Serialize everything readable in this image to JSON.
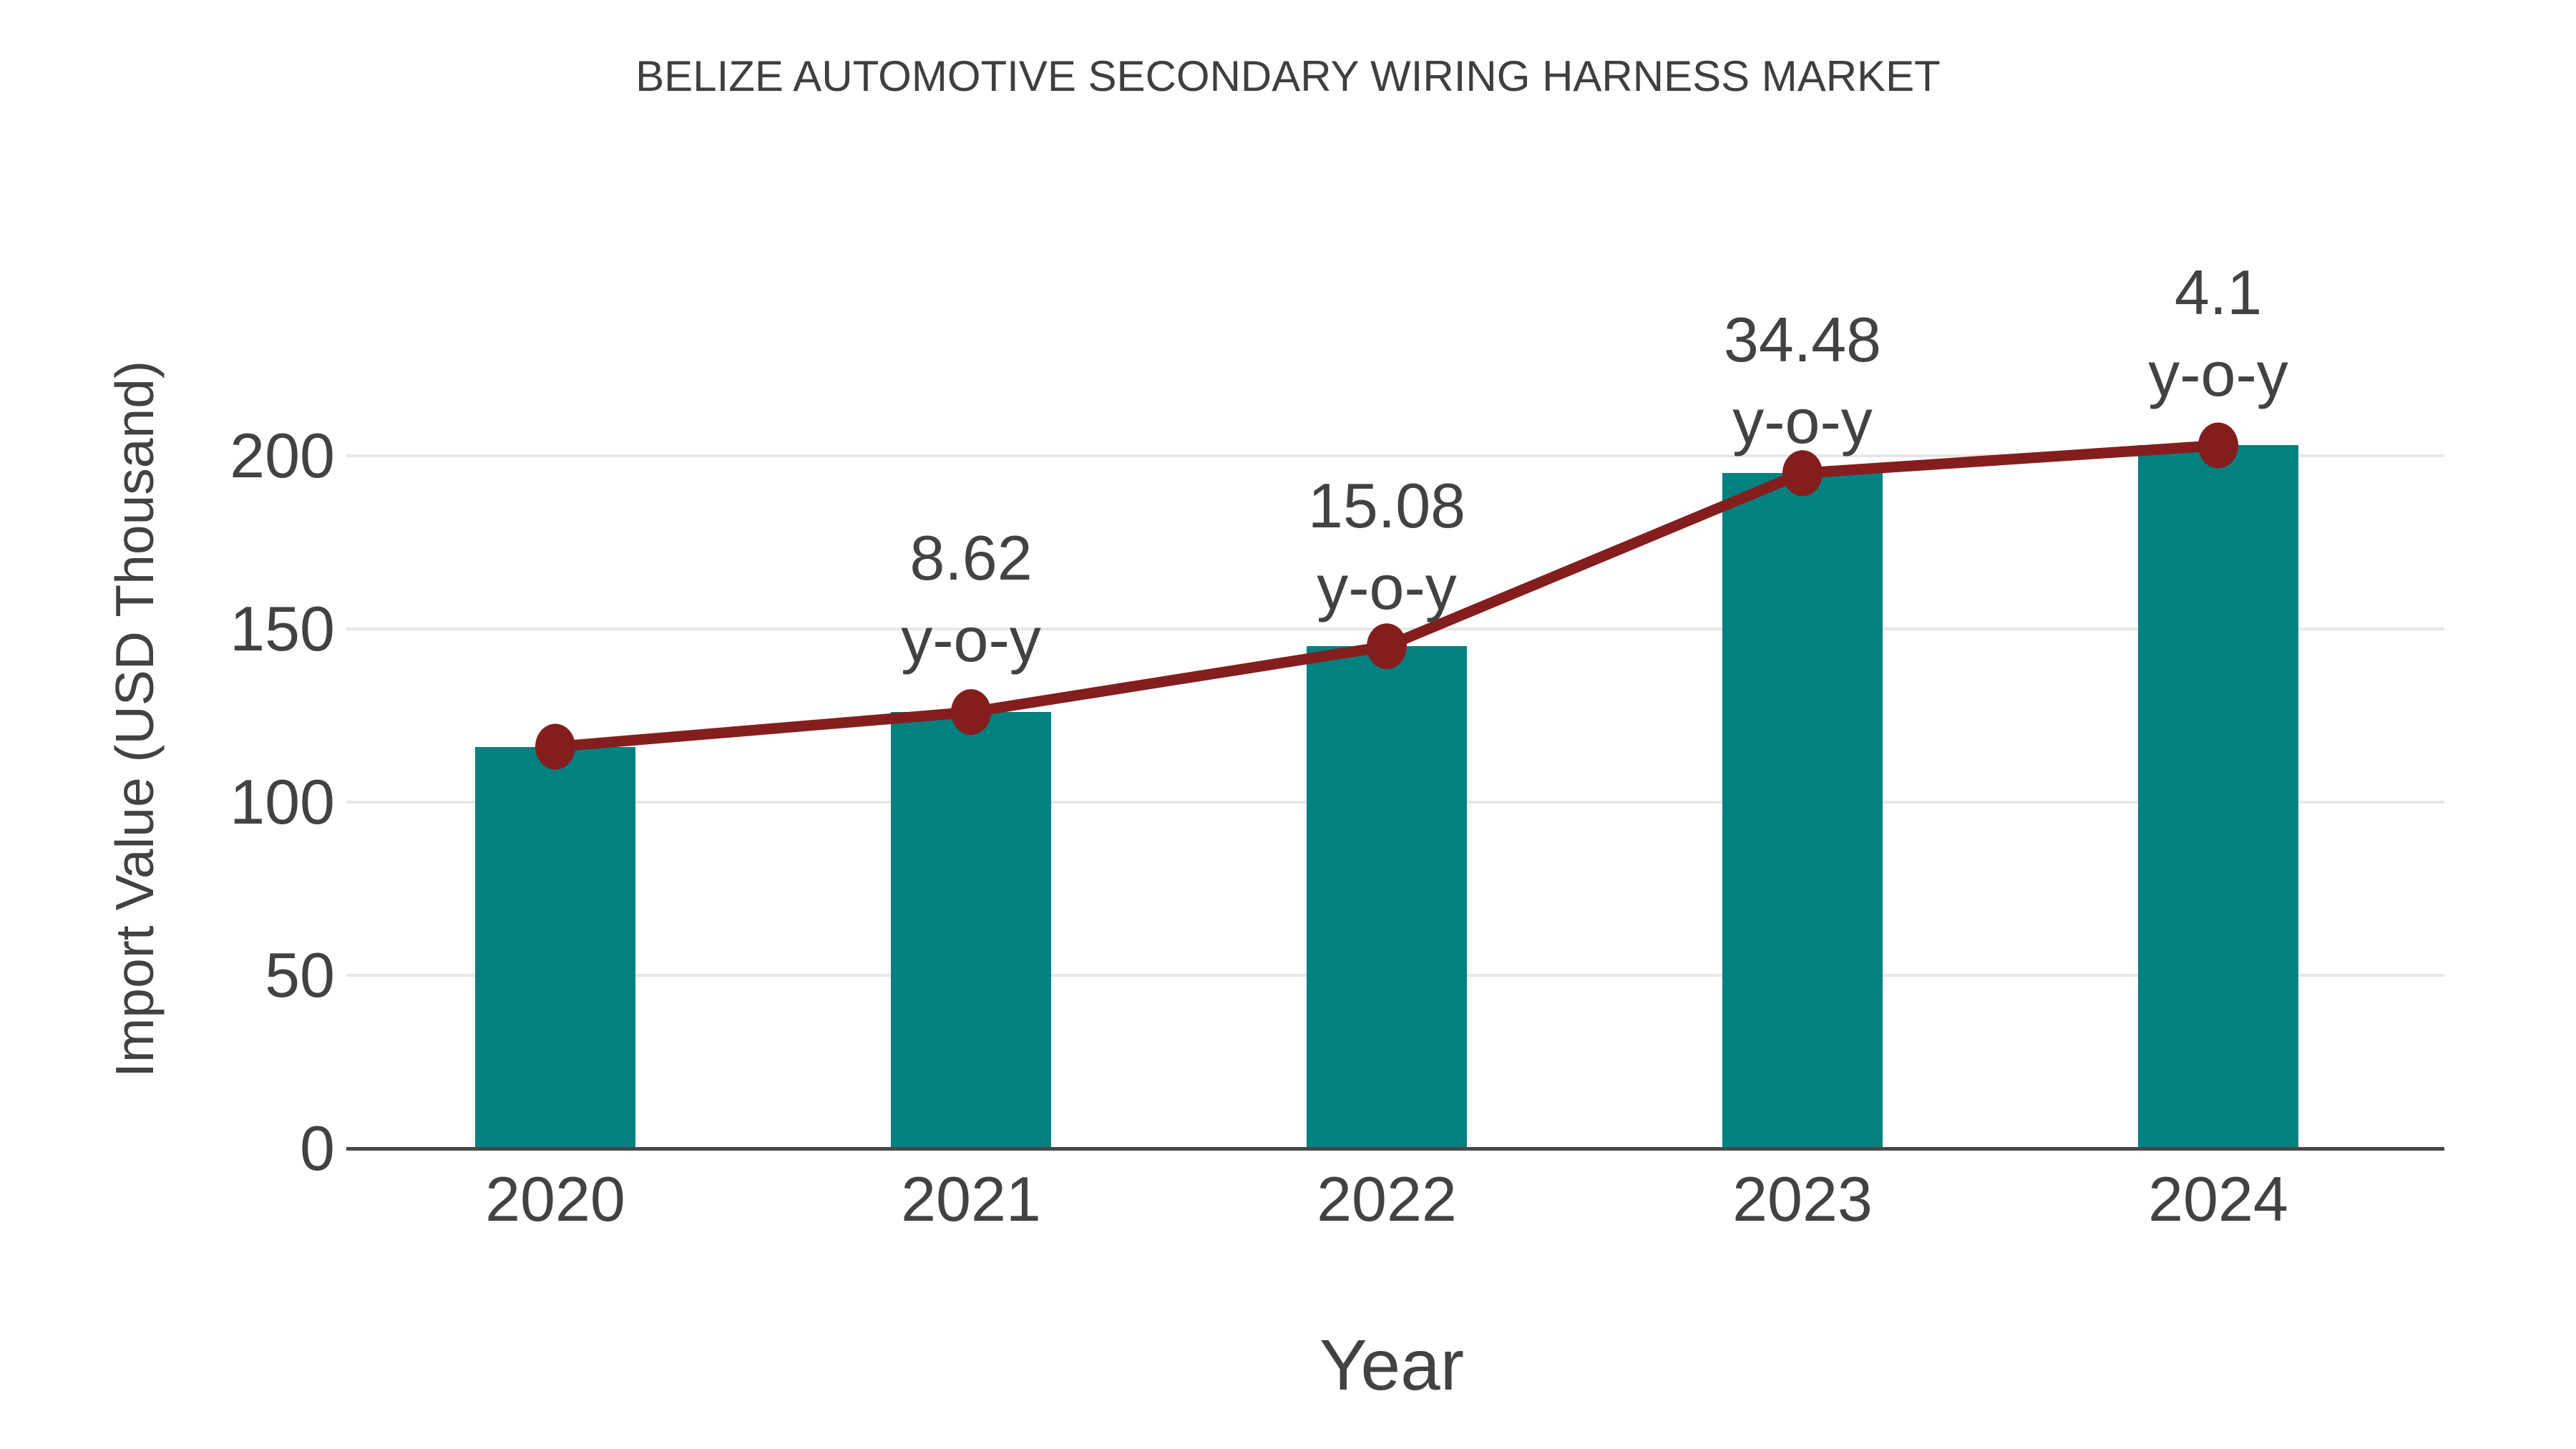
{
  "chart_data": {
    "type": "bar+line",
    "title": "BELIZE AUTOMOTIVE SECONDARY WIRING HARNESS MARKET",
    "xlabel": "Year",
    "ylabel": "Import Value (USD Thousand)",
    "categories": [
      "2020",
      "2021",
      "2022",
      "2023",
      "2024"
    ],
    "series": [
      {
        "name": "Import Value (USD Thousand)",
        "type": "bar",
        "values": [
          116,
          126,
          145,
          195,
          203
        ]
      },
      {
        "name": "y-o-y growth",
        "type": "line",
        "values": [
          null,
          8.62,
          15.08,
          34.48,
          4.1
        ]
      }
    ],
    "annotations": [
      {
        "category": "2021",
        "line1": "8.62",
        "line2": "y-o-y"
      },
      {
        "category": "2022",
        "line1": "15.08",
        "line2": "y-o-y"
      },
      {
        "category": "2023",
        "line1": "34.48",
        "line2": "y-o-y"
      },
      {
        "category": "2024",
        "line1": "4.1",
        "line2": "y-o-y"
      }
    ],
    "yticks": [
      0,
      50,
      100,
      150,
      200
    ],
    "ylim": [
      0,
      210
    ],
    "grid": true,
    "legend_position": "none",
    "colors": {
      "bar": "#038080",
      "line": "#841e1e",
      "marker": "#841e1e",
      "text": "#424242",
      "grid": "#e7e7e7",
      "axis": "#474747",
      "background": "#ffffff"
    }
  }
}
